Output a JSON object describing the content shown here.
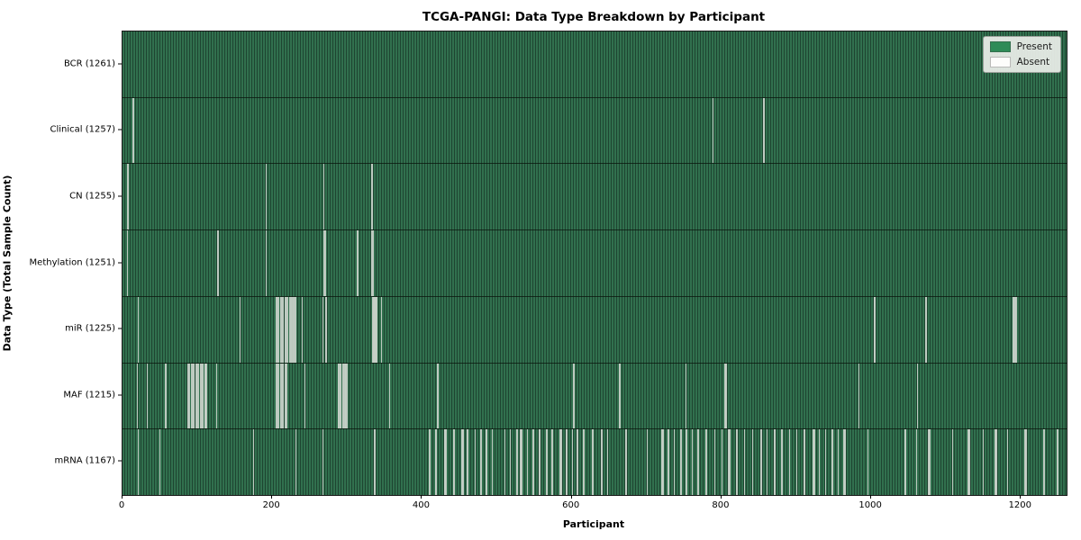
{
  "title": "TCGA-PANGI: Data Type Breakdown by Participant",
  "axes": {
    "xlabel": "Participant",
    "ylabel": "Data Type (Total Sample Count)"
  },
  "colors": {
    "present_fill": "#2e8b57",
    "present_dark_edge": "#1e4531",
    "absent_fill": "#ffffff",
    "absent_stripe_render": "#c6d0c7",
    "spine": "#1a1a1a",
    "legend_bg": "#ebeee9"
  },
  "chart_data": {
    "type": "heatmap",
    "title": "TCGA-PANGI: Data Type Breakdown by Participant",
    "xlabel": "Participant",
    "ylabel": "Data Type (Total Sample Count)",
    "x_ticks": [
      0,
      200,
      400,
      600,
      800,
      1000,
      1200
    ],
    "xlim": [
      0,
      1261
    ],
    "total_participants": 1261,
    "grid": false,
    "legend_position": "upper right",
    "legend": [
      {
        "label": "Present",
        "color": "#2e8b57"
      },
      {
        "label": "Absent",
        "color": "#ffffff"
      }
    ],
    "rows": [
      {
        "label": "BCR (1261)",
        "data_type": "BCR",
        "total_sample_count": 1261,
        "absent_participants": []
      },
      {
        "label": "Clinical (1257)",
        "data_type": "Clinical",
        "total_sample_count": 1257,
        "absent_participants": [
          13,
          14,
          788,
          856
        ]
      },
      {
        "label": "CN (1255)",
        "data_type": "CN",
        "total_sample_count": 1255,
        "absent_participants": [
          6,
          7,
          191,
          268,
          332,
          333
        ]
      },
      {
        "label": "Methylation (1251)",
        "data_type": "Methylation",
        "total_sample_count": 1251,
        "absent_participants": [
          6,
          126,
          127,
          191,
          268,
          270,
          313,
          332,
          333,
          334
        ]
      },
      {
        "label": "miR (1225)",
        "data_type": "miR",
        "total_sample_count": 1225,
        "absent_participants": [
          20,
          156,
          204,
          206,
          208,
          210,
          212,
          214,
          216,
          218,
          220,
          222,
          224,
          226,
          228,
          230,
          239,
          267,
          271,
          333,
          334,
          335,
          336,
          337,
          338,
          339,
          345,
          1003,
          1004,
          1072,
          1073,
          1189,
          1190,
          1191,
          1192,
          1193
        ]
      },
      {
        "label": "MAF (1215)",
        "data_type": "MAF",
        "total_sample_count": 1215,
        "absent_participants": [
          19,
          32,
          57,
          87,
          89,
          91,
          93,
          95,
          97,
          99,
          101,
          103,
          105,
          107,
          109,
          110,
          111,
          125,
          204,
          206,
          208,
          210,
          212,
          214,
          216,
          218,
          243,
          287,
          288,
          290,
          291,
          293,
          294,
          296,
          297,
          299,
          356,
          420,
          421,
          602,
          663,
          752,
          804,
          805,
          983,
          1061
        ]
      },
      {
        "label": "mRNA (1167)",
        "data_type": "mRNA",
        "total_sample_count": 1167,
        "absent_participants": [
          20,
          49,
          174,
          231,
          267,
          336,
          409,
          410,
          417,
          418,
          429,
          430,
          431,
          441,
          442,
          453,
          454,
          460,
          470,
          478,
          485,
          486,
          493,
          510,
          517,
          526,
          531,
          532,
          540,
          548,
          556,
          566,
          573,
          584,
          585,
          592,
          600,
          607,
          615,
          627,
          639,
          647,
          672,
          700,
          720,
          721,
          728,
          736,
          745,
          752,
          753,
          760,
          768,
          779,
          790,
          800,
          809,
          810,
          820,
          830,
          841,
          852,
          860,
          870,
          871,
          880,
          890,
          900,
          910,
          922,
          923,
          930,
          938,
          947,
          955,
          963,
          964,
          995,
          1044,
          1045,
          1060,
          1076,
          1077,
          1108,
          1129,
          1130,
          1149,
          1165,
          1166,
          1181,
          1205,
          1206,
          1230,
          1248
        ]
      }
    ]
  }
}
